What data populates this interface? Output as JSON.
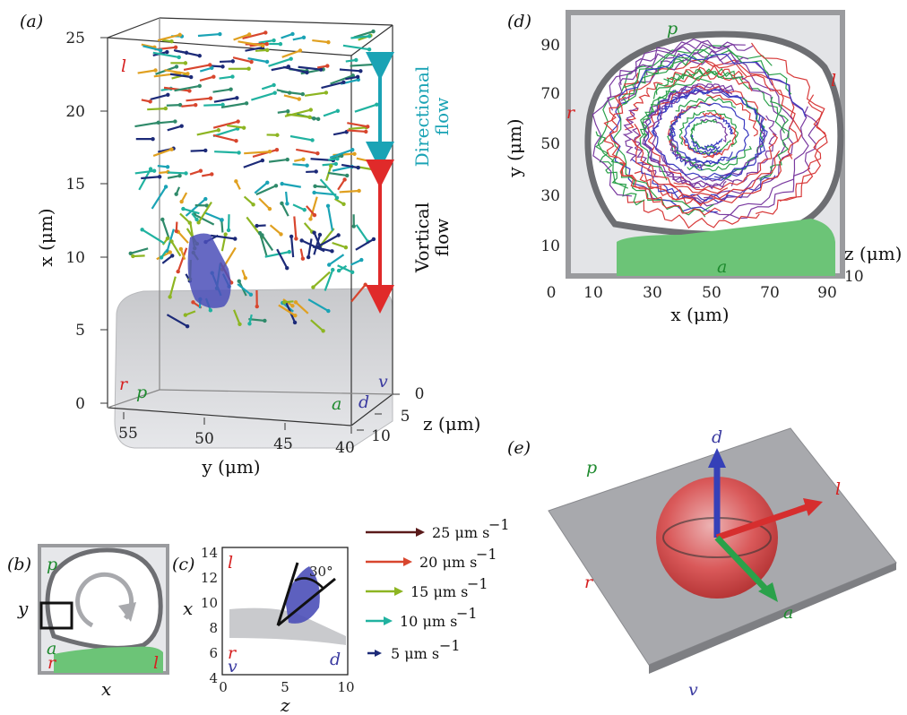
{
  "panels": {
    "a": "(a)",
    "b": "(b)",
    "c": "(c)",
    "d": "(d)",
    "e": "(e)"
  },
  "panel_a": {
    "x_axis_label": "x (μm)",
    "y_axis_label": "y (μm)",
    "z_axis_label": "z (μm)",
    "x_ticks": [
      "0",
      "5",
      "10",
      "15",
      "20",
      "25"
    ],
    "y_ticks": [
      "55",
      "50",
      "45",
      "40"
    ],
    "z_ticks": [
      "0",
      "5",
      "10"
    ],
    "orient": {
      "l": "l",
      "r": "r",
      "p": "p",
      "a": "a",
      "d": "d",
      "v": "v"
    },
    "directional_label": [
      "Directional",
      "flow"
    ],
    "vortical_label": [
      "Vortical",
      "flow"
    ]
  },
  "panel_b": {
    "x_label": "x",
    "y_label": "y",
    "orient": {
      "p": "p",
      "a": "a",
      "r": "r",
      "l": "l"
    }
  },
  "panel_c": {
    "x_label": "z",
    "y_label": "x",
    "x_ticks": [
      "0",
      "5",
      "10"
    ],
    "y_ticks": [
      "4",
      "6",
      "8",
      "10",
      "12",
      "14"
    ],
    "angle": "30°",
    "orient": {
      "l": "l",
      "r": "r",
      "v": "v",
      "d": "d"
    }
  },
  "panel_d": {
    "x_label": "x (μm)",
    "y_label": "y (μm)",
    "z_label": "z (μm)",
    "x_ticks": [
      "0",
      "10",
      "30",
      "50",
      "70",
      "90"
    ],
    "y_ticks": [
      "10",
      "30",
      "50",
      "70",
      "90"
    ],
    "z_tick": "10",
    "orient": {
      "p": "p",
      "a": "a",
      "r": "r",
      "l": "l"
    }
  },
  "panel_e": {
    "orient": {
      "d": "d",
      "p": "p",
      "l": "l",
      "r": "r",
      "a": "a",
      "v": "v"
    }
  },
  "legend": [
    {
      "label": "25 μm s",
      "exp": "−1",
      "color": "#5a1a1a"
    },
    {
      "label": "20 μm s",
      "exp": "−1",
      "color": "#d8462e"
    },
    {
      "label": "15 μm s",
      "exp": "−1",
      "color": "#8db522"
    },
    {
      "label": "10 μm s",
      "exp": "−1",
      "color": "#20b2a0"
    },
    {
      "label": "5 μm s",
      "exp": "−1",
      "color": "#1c2a78"
    }
  ],
  "colors": {
    "orient_red": "#d62020",
    "orient_green": "#1e8a2e",
    "orient_blue": "#3a3aa0",
    "directional": "#1aa3b5",
    "vortical": "#e02a2a"
  }
}
